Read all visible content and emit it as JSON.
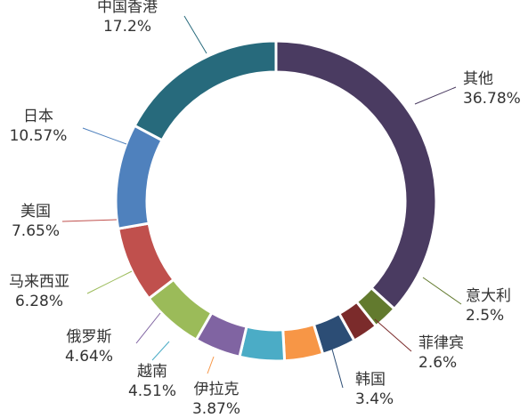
{
  "chart_data": {
    "type": "pie",
    "variant": "donut",
    "title": "",
    "labels_show": "name and percent",
    "slices": [
      {
        "name": "其他",
        "value": 36.78,
        "label": "36.78%",
        "color": "#4a3b61"
      },
      {
        "name": "意大利",
        "value": 2.5,
        "label": "2.5%",
        "color": "#627a2e"
      },
      {
        "name": "菲律宾",
        "value": 2.6,
        "label": "2.6%",
        "color": "#7b2b2b"
      },
      {
        "name": "韩国",
        "value": 3.4,
        "label": "3.4%",
        "color": "#2c4d75"
      },
      {
        "name": "伊拉克",
        "value": 3.87,
        "label": "3.87%",
        "color": "#f79646"
      },
      {
        "name": "越南",
        "value": 4.51,
        "label": "4.51%",
        "color": "#4bacc6"
      },
      {
        "name": "俄罗斯",
        "value": 4.64,
        "label": "4.64%",
        "color": "#8064a2"
      },
      {
        "name": "马来西亚",
        "value": 6.28,
        "label": "6.28%",
        "color": "#9bbb59"
      },
      {
        "name": "美国",
        "value": 7.65,
        "label": "7.65%",
        "color": "#c0504d"
      },
      {
        "name": "日本",
        "value": 10.57,
        "label": "10.57%",
        "color": "#4f81bd"
      },
      {
        "name": "中国香港",
        "value": 17.2,
        "label": "17.2%",
        "color": "#276a7c"
      }
    ]
  }
}
